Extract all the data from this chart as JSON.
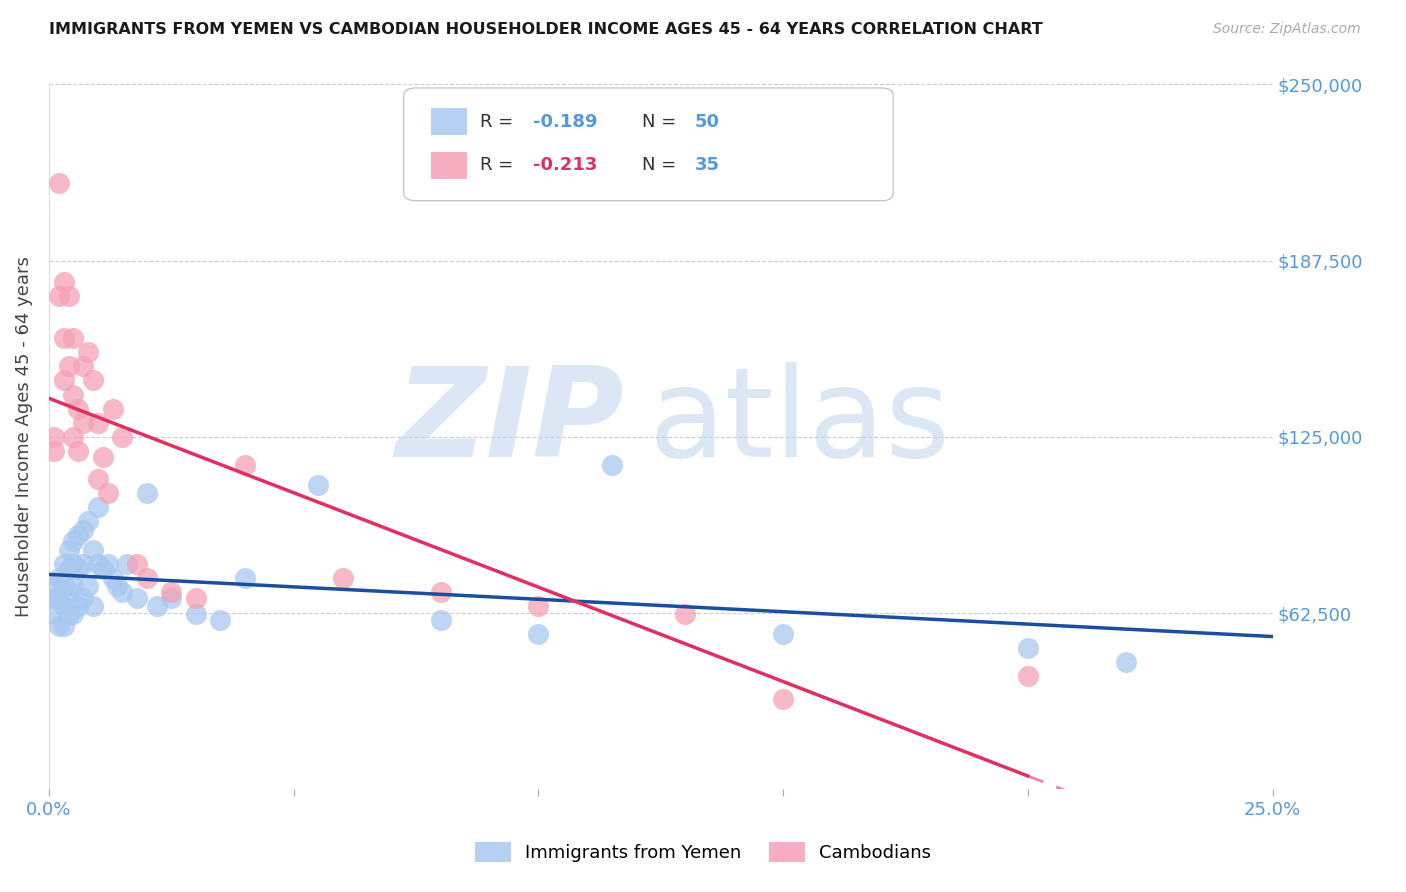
{
  "title": "IMMIGRANTS FROM YEMEN VS CAMBODIAN HOUSEHOLDER INCOME AGES 45 - 64 YEARS CORRELATION CHART",
  "source": "Source: ZipAtlas.com",
  "ylabel": "Householder Income Ages 45 - 64 years",
  "xlim": [
    0.0,
    0.25
  ],
  "ylim": [
    0,
    250000
  ],
  "yticks": [
    0,
    62500,
    125000,
    187500,
    250000
  ],
  "ytick_labels_right": [
    "",
    "$62,500",
    "$125,000",
    "$187,500",
    "$250,000"
  ],
  "xticks": [
    0.0,
    0.05,
    0.1,
    0.15,
    0.2,
    0.25
  ],
  "xtick_labels": [
    "0.0%",
    "",
    "",
    "",
    "",
    "25.0%"
  ],
  "legend_R1": "-0.189",
  "legend_N1": "50",
  "legend_R2": "-0.213",
  "legend_N2": "35",
  "watermark_zip": "ZIP",
  "watermark_atlas": "atlas",
  "yemen_color": "#a8c8f0",
  "cambodian_color": "#f5a0b5",
  "yemen_line_color": "#1a4fa0",
  "cambodian_line_color": "#e03060",
  "title_color": "#1a1a1a",
  "axis_label_color": "#444444",
  "tick_label_color": "#5599dd",
  "grid_color": "#cccccc",
  "background_color": "#ffffff",
  "yemen_x": [
    0.001,
    0.001,
    0.001,
    0.002,
    0.002,
    0.002,
    0.003,
    0.003,
    0.003,
    0.003,
    0.004,
    0.004,
    0.004,
    0.004,
    0.005,
    0.005,
    0.005,
    0.005,
    0.006,
    0.006,
    0.006,
    0.007,
    0.007,
    0.007,
    0.008,
    0.008,
    0.009,
    0.009,
    0.01,
    0.01,
    0.011,
    0.012,
    0.013,
    0.014,
    0.015,
    0.016,
    0.018,
    0.02,
    0.022,
    0.025,
    0.03,
    0.035,
    0.04,
    0.055,
    0.08,
    0.1,
    0.115,
    0.15,
    0.2,
    0.22
  ],
  "yemen_y": [
    72000,
    68000,
    62000,
    75000,
    68000,
    58000,
    80000,
    72000,
    65000,
    58000,
    85000,
    78000,
    70000,
    62000,
    88000,
    80000,
    72000,
    62000,
    90000,
    78000,
    65000,
    92000,
    80000,
    68000,
    95000,
    72000,
    85000,
    65000,
    100000,
    80000,
    78000,
    80000,
    75000,
    72000,
    70000,
    80000,
    68000,
    105000,
    65000,
    68000,
    62000,
    60000,
    75000,
    108000,
    60000,
    55000,
    115000,
    55000,
    50000,
    45000
  ],
  "cambodian_x": [
    0.001,
    0.001,
    0.002,
    0.002,
    0.003,
    0.003,
    0.003,
    0.004,
    0.004,
    0.005,
    0.005,
    0.005,
    0.006,
    0.006,
    0.007,
    0.007,
    0.008,
    0.009,
    0.01,
    0.01,
    0.011,
    0.012,
    0.013,
    0.015,
    0.018,
    0.02,
    0.025,
    0.03,
    0.04,
    0.06,
    0.08,
    0.1,
    0.13,
    0.15,
    0.2
  ],
  "cambodian_y": [
    125000,
    120000,
    215000,
    175000,
    180000,
    160000,
    145000,
    175000,
    150000,
    160000,
    140000,
    125000,
    135000,
    120000,
    150000,
    130000,
    155000,
    145000,
    130000,
    110000,
    118000,
    105000,
    135000,
    125000,
    80000,
    75000,
    70000,
    68000,
    115000,
    75000,
    70000,
    65000,
    62000,
    32000,
    40000
  ]
}
